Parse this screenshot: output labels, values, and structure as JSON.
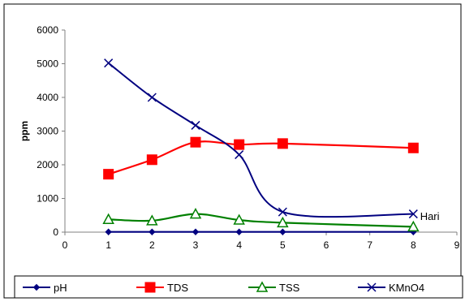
{
  "chart_data": {
    "type": "line",
    "title": "",
    "xlabel": "",
    "ylabel": "ppm",
    "xlim": [
      0,
      9
    ],
    "ylim": [
      0,
      6000
    ],
    "x_ticks": [
      0,
      1,
      2,
      3,
      4,
      5,
      6,
      7,
      8,
      9
    ],
    "y_ticks": [
      0,
      1000,
      2000,
      3000,
      4000,
      5000,
      6000
    ],
    "grid": false,
    "legend_position": "bottom",
    "annotations": [
      {
        "text": "Hari",
        "x": 8.1,
        "y": 480
      }
    ],
    "series": [
      {
        "name": "pH",
        "color": "#000080",
        "marker": "diamond",
        "x": [
          1,
          2,
          3,
          4,
          5,
          8
        ],
        "y": [
          7,
          7,
          7,
          7,
          7,
          7
        ]
      },
      {
        "name": "TDS",
        "color": "#FF0000",
        "marker": "square",
        "x": [
          1,
          2,
          3,
          4,
          5,
          8
        ],
        "y": [
          1720,
          2150,
          2670,
          2600,
          2630,
          2500
        ]
      },
      {
        "name": "TSS",
        "color": "#008000",
        "marker": "triangle",
        "x": [
          1,
          2,
          3,
          4,
          5,
          8
        ],
        "y": [
          380,
          340,
          540,
          360,
          280,
          160
        ]
      },
      {
        "name": "KMnO4",
        "color": "#000080",
        "marker": "x",
        "x": [
          1,
          2,
          3,
          4,
          5,
          8
        ],
        "y": [
          5020,
          4000,
          3170,
          2300,
          600,
          540
        ]
      }
    ]
  }
}
